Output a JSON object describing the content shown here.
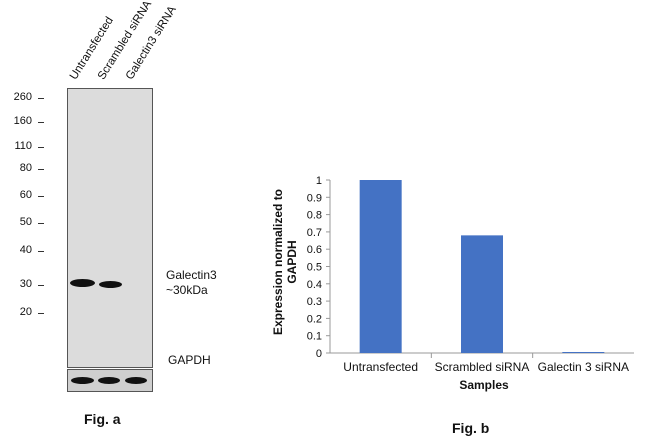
{
  "western_blot": {
    "lane_labels": [
      "Untransfected",
      "Scrambled siRNA",
      "Galectin3 siRNA"
    ],
    "markers": [
      "260",
      "160",
      "110",
      "80",
      "60",
      "50",
      "40",
      "30",
      "20"
    ],
    "band_label_line1": "Galectin3",
    "band_label_line2": "~30kDa",
    "loading_control_label": "GAPDH",
    "figure_label": "Fig. a"
  },
  "chart_data": {
    "type": "bar",
    "title": "",
    "categories": [
      "Untransfected",
      "Scrambled siRNA",
      "Galectin 3 siRNA"
    ],
    "values": [
      1.0,
      0.68,
      0.0
    ],
    "xlabel": "Samples",
    "ylabel_line1": "Expression normalized to",
    "ylabel_line2": "GAPDH",
    "ylim": [
      0,
      1
    ],
    "yticks": [
      "0",
      "0.1",
      "0.2",
      "0.3",
      "0.4",
      "0.5",
      "0.6",
      "0.7",
      "0.8",
      "0.9",
      "1"
    ],
    "bar_color": "#4472c4",
    "grid": false,
    "legend": "none",
    "figure_label": "Fig. b"
  }
}
